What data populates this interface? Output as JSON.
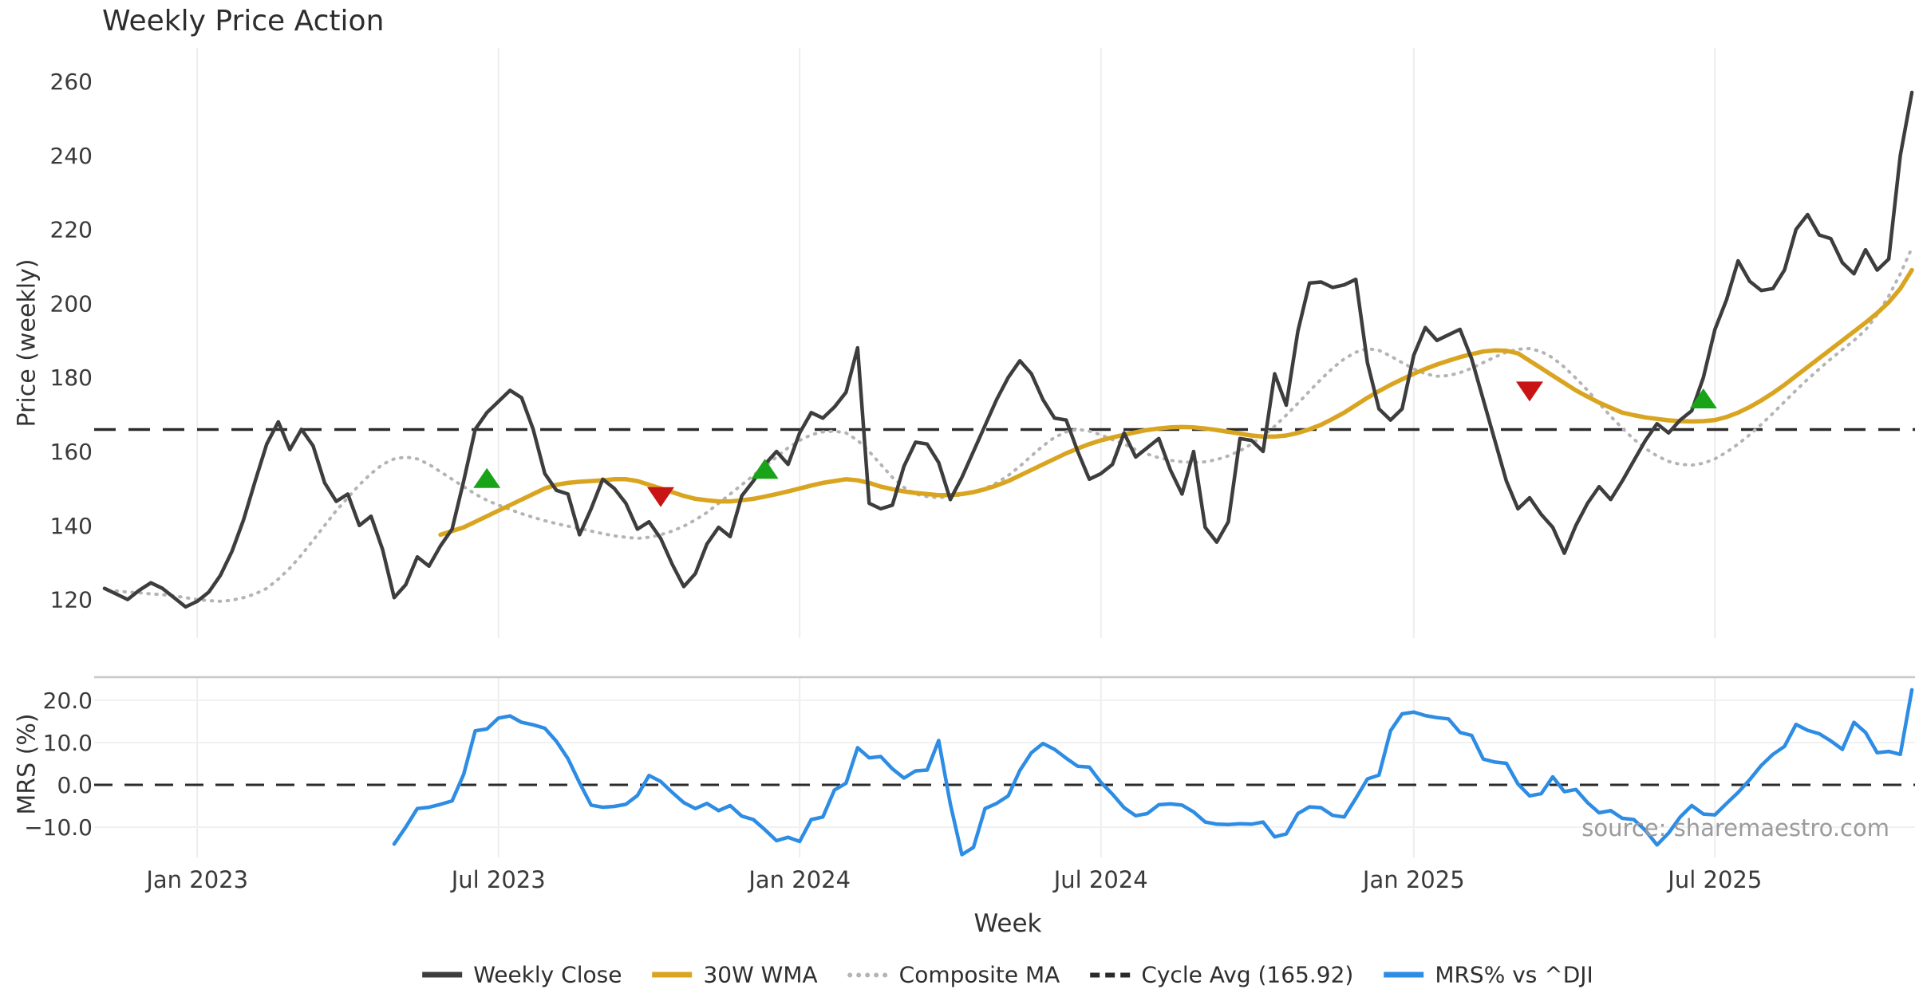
{
  "title": "Weekly Price Action",
  "source": "source: sharemaestro.com",
  "colors": {
    "close": "#3d3d3d",
    "wma": "#d9a521",
    "composite": "#b4b4b4",
    "cycle": "#2b2b2b",
    "mrs": "#2d8ce3",
    "buy": "#18a318",
    "sell": "#c81414",
    "grid": "#ededed",
    "spine": "#c8c8c8",
    "tick_text": "#3a3a3a"
  },
  "x_axis": {
    "label": "Week",
    "start_date": "2022-11-07",
    "freq": "weekly",
    "ticks": [
      {
        "week": 8,
        "label": "Jan 2023"
      },
      {
        "week": 34,
        "label": "Jul 2023"
      },
      {
        "week": 60,
        "label": "Jan 2024"
      },
      {
        "week": 86,
        "label": "Jul 2024"
      },
      {
        "week": 113,
        "label": "Jan 2025"
      },
      {
        "week": 139,
        "label": "Jul 2025"
      }
    ]
  },
  "legend": [
    {
      "label": "Weekly Close"
    },
    {
      "label": "30W WMA"
    },
    {
      "label": "Composite MA"
    },
    {
      "label": "Cycle Avg (165.92)"
    },
    {
      "label": "MRS% vs ^DJI"
    }
  ],
  "chart_data": [
    {
      "type": "line",
      "panel": "price",
      "ylabel": "Price (weekly)",
      "ylim": [
        108,
        268
      ],
      "yticks": [
        120,
        140,
        160,
        180,
        200,
        220,
        240,
        260
      ],
      "cycle_avg": 165.92,
      "series": [
        {
          "name": "Weekly Close",
          "style": "solid",
          "start_week": 0,
          "values": [
            123,
            121.5,
            120,
            122.5,
            124.5,
            123,
            120.5,
            118,
            119.5,
            122,
            126.5,
            133,
            141.5,
            152,
            162,
            168,
            160.5,
            166,
            161.5,
            151.5,
            146.5,
            148.5,
            140,
            142.5,
            133.5,
            120.5,
            124,
            131.5,
            129,
            134.5,
            139,
            152,
            166,
            170.5,
            173.5,
            176.5,
            174.5,
            166,
            154,
            149.5,
            148.5,
            137.5,
            144.5,
            152.5,
            150,
            146,
            139,
            141,
            136.5,
            129.5,
            123.5,
            127,
            135,
            139.5,
            137,
            148,
            152,
            156.5,
            160,
            156.5,
            165,
            170.5,
            169,
            172,
            176,
            188,
            146,
            144.5,
            145.5,
            156,
            162.5,
            162,
            157,
            147,
            153,
            160,
            167,
            174,
            180,
            184.5,
            181,
            174,
            169,
            168.5,
            160,
            152.5,
            154,
            156.5,
            165,
            158.5,
            161,
            163.5,
            155,
            148.5,
            160,
            139.5,
            135.5,
            141,
            163.5,
            163,
            160,
            181,
            172.5,
            192.5,
            205.5,
            205.8,
            204.3,
            205,
            206.5,
            184,
            171.5,
            168.5,
            171.5,
            186,
            193.5,
            190,
            191.5,
            193,
            185,
            174,
            163,
            152,
            144.5,
            147.5,
            143,
            139.5,
            132.5,
            140,
            146,
            150.5,
            147,
            152,
            157.5,
            163,
            167.5,
            165,
            168.5,
            171,
            180,
            193,
            201,
            211.5,
            206,
            203.5,
            204,
            209,
            220,
            224,
            218.5,
            217.5,
            211,
            208,
            214.5,
            209,
            212,
            240,
            257
          ]
        },
        {
          "name": "30W WMA",
          "style": "solid",
          "start_week": 29,
          "values": [
            137.5,
            138.5,
            139.5,
            141,
            142.5,
            144,
            145.5,
            147,
            148.5,
            150,
            151,
            151.5,
            151.8,
            152,
            152.2,
            152.5,
            152.5,
            152,
            151,
            150,
            149,
            148,
            147.2,
            146.8,
            146.5,
            146.5,
            146.8,
            147.2,
            147.8,
            148.5,
            149.2,
            150,
            150.8,
            151.5,
            152,
            152.5,
            152.2,
            151.5,
            150.5,
            149.8,
            149.2,
            148.8,
            148.5,
            148.2,
            148.2,
            148.5,
            149,
            149.8,
            150.8,
            152,
            153.5,
            155,
            156.5,
            158,
            159.5,
            160.8,
            162,
            163,
            163.8,
            164.5,
            165.2,
            165.8,
            166.2,
            166.5,
            166.6,
            166.5,
            166.2,
            165.8,
            165.3,
            164.8,
            164.3,
            164,
            164,
            164.3,
            165,
            166,
            167.2,
            168.8,
            170.5,
            172.5,
            174.5,
            176.3,
            178,
            179.5,
            181,
            182.3,
            183.5,
            184.5,
            185.5,
            186.3,
            187,
            187.3,
            187.2,
            186.5,
            184.5,
            182.5,
            180.5,
            178.5,
            176.5,
            174.8,
            173.2,
            171.8,
            170.5,
            169.8,
            169.2,
            168.8,
            168.4,
            168.2,
            168.1,
            168.2,
            168.5,
            169.3,
            170.5,
            172,
            173.8,
            175.8,
            178,
            180.4,
            182.8,
            185.2,
            187.6,
            190,
            192.4,
            194.8,
            197.4,
            200.3,
            204,
            209
          ]
        },
        {
          "name": "Composite MA",
          "style": "dotted",
          "start_week": 1,
          "values": [
            122.3,
            122,
            121.8,
            121.5,
            121.3,
            121,
            120.5,
            120,
            119.7,
            119.5,
            119.8,
            120.5,
            121.5,
            123,
            125.5,
            128.5,
            132,
            136,
            140,
            144,
            147.5,
            151,
            154,
            156.5,
            158,
            158.5,
            158,
            156.5,
            154.5,
            152.5,
            150.5,
            148.5,
            146.8,
            145.5,
            144.3,
            143.2,
            142.2,
            141.3,
            140.5,
            139.8,
            139.2,
            138.5,
            137.8,
            137.2,
            136.8,
            136.5,
            136.8,
            137.5,
            138.5,
            139.8,
            141.5,
            143.5,
            146,
            148.5,
            151,
            153.5,
            156,
            158.5,
            161,
            163,
            164.5,
            165.3,
            165.5,
            165,
            163,
            160,
            156.5,
            153,
            150.3,
            148.5,
            147.8,
            147.5,
            147.8,
            148.3,
            149,
            150,
            151.5,
            153.5,
            156,
            158.8,
            161.5,
            163.8,
            165.3,
            166,
            165.5,
            164.5,
            163.2,
            162,
            160.5,
            159.3,
            158.3,
            157.6,
            157.2,
            157,
            157.2,
            157.8,
            158.8,
            160.2,
            162,
            164.2,
            166.8,
            169.8,
            173,
            176.3,
            179.5,
            182.5,
            185,
            186.8,
            187.8,
            187.3,
            185.8,
            184,
            182.3,
            181,
            180.3,
            180.5,
            181.3,
            182.5,
            184,
            185.5,
            186.8,
            187.6,
            187.8,
            187,
            185.3,
            182.8,
            179.8,
            176.5,
            173,
            169.5,
            166.3,
            163.3,
            160.8,
            158.8,
            157.3,
            156.5,
            156.3,
            156.8,
            158,
            159.8,
            162,
            164.5,
            167.3,
            170.3,
            173.4,
            176.5,
            179.5,
            182.3,
            185,
            187.5,
            190,
            192.8,
            197,
            202,
            208,
            215
          ]
        }
      ],
      "signals": [
        {
          "type": "buy",
          "week": 33,
          "value": 152.5
        },
        {
          "type": "sell",
          "week": 48,
          "value": 148
        },
        {
          "type": "buy",
          "week": 57,
          "value": 155
        },
        {
          "type": "sell",
          "week": 123,
          "value": 176.5
        },
        {
          "type": "buy",
          "week": 138,
          "value": 174
        }
      ]
    },
    {
      "type": "line",
      "panel": "mrs",
      "ylabel": "MRS (%)",
      "ylim": [
        -17.5,
        25.5
      ],
      "yticks": [
        20,
        10,
        0,
        -10
      ],
      "ytick_labels": [
        "20.0",
        "10.0",
        "0.0",
        "−10.0"
      ],
      "zero_line_dashed": true,
      "series": [
        {
          "name": "MRS% vs ^DJI",
          "style": "solid",
          "start_week": 25,
          "values": [
            -14,
            -10,
            -5.6,
            -5.3,
            -4.6,
            -3.8,
            2.5,
            12.8,
            13.2,
            15.8,
            16.3,
            14.8,
            14.2,
            13.4,
            10.3,
            6.2,
            0.5,
            -4.8,
            -5.3,
            -5.1,
            -4.6,
            -2.5,
            2.2,
            0.8,
            -1.8,
            -4.2,
            -5.6,
            -4.4,
            -6.1,
            -4.9,
            -7.4,
            -8.2,
            -10.6,
            -13.2,
            -12.4,
            -13.4,
            -8.2,
            -7.6,
            -1.2,
            0.4,
            8.8,
            6.4,
            6.7,
            3.8,
            1.6,
            3.3,
            3.5,
            10.5,
            -4.5,
            -16.5,
            -14.8,
            -5.6,
            -4.4,
            -2.6,
            3.4,
            7.6,
            9.8,
            8.4,
            6.3,
            4.4,
            4.2,
            0.6,
            -2.2,
            -5.4,
            -7.3,
            -6.8,
            -4.7,
            -4.5,
            -4.8,
            -6.4,
            -8.8,
            -9.3,
            -9.4,
            -9.2,
            -9.3,
            -8.8,
            -12.3,
            -11.6,
            -6.8,
            -5.2,
            -5.4,
            -7.2,
            -7.6,
            -3.2,
            1.4,
            2.3,
            12.8,
            16.8,
            17.2,
            16.4,
            15.9,
            15.6,
            12.4,
            11.7,
            6.1,
            5.4,
            5.1,
            0.2,
            -2.6,
            -2.1,
            1.9,
            -1.6,
            -1.1,
            -4.2,
            -6.6,
            -6.1,
            -7.9,
            -8.2,
            -10.8,
            -14.2,
            -11.4,
            -7.6,
            -4.9,
            -6.9,
            -7.1,
            -4.4,
            -1.8,
            1.2,
            4.6,
            7.2,
            9.1,
            14.3,
            12.9,
            12.1,
            10.4,
            8.4,
            14.8,
            12.4,
            7.6,
            7.9,
            7.2,
            22.5
          ]
        }
      ]
    }
  ]
}
